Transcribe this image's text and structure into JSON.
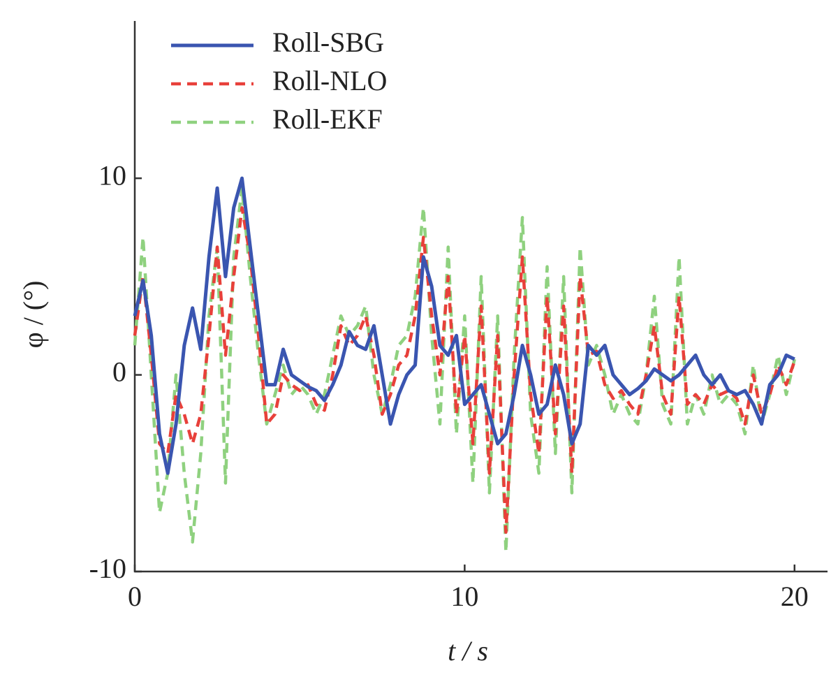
{
  "chart_data": {
    "type": "line",
    "x_label": "t / s",
    "y_label": "φ / (°)",
    "x": [
      0,
      0.25,
      0.5,
      0.75,
      1,
      1.25,
      1.5,
      1.75,
      2,
      2.25,
      2.5,
      2.75,
      3,
      3.25,
      3.5,
      3.75,
      4,
      4.25,
      4.5,
      4.75,
      5,
      5.25,
      5.5,
      5.75,
      6,
      6.25,
      6.5,
      6.75,
      7,
      7.25,
      7.5,
      7.75,
      8,
      8.25,
      8.5,
      8.75,
      9,
      9.25,
      9.5,
      9.75,
      10,
      10.25,
      10.5,
      10.75,
      11,
      11.25,
      11.5,
      11.75,
      12,
      12.25,
      12.5,
      12.75,
      13,
      13.25,
      13.5,
      13.75,
      14,
      14.25,
      14.5,
      14.75,
      15,
      15.25,
      15.5,
      15.75,
      16,
      16.25,
      16.5,
      16.75,
      17,
      17.25,
      17.5,
      17.75,
      18,
      18.25,
      18.5,
      18.75,
      19,
      19.25,
      19.5,
      19.75,
      20
    ],
    "series": [
      {
        "name": "Roll-SBG",
        "color": "#3a55b0",
        "style": "solid",
        "values": [
          3,
          4.8,
          2,
          -3,
          -5,
          -2.5,
          1.5,
          3.4,
          1.3,
          6,
          9.5,
          5,
          8.5,
          10,
          6.5,
          3,
          -0.5,
          -0.5,
          1.3,
          0,
          -0.3,
          -0.6,
          -0.8,
          -1.3,
          -0.5,
          0.5,
          2.2,
          1.5,
          1.3,
          2.5,
          0,
          -2.5,
          -1,
          0,
          0.5,
          6,
          4.5,
          1.5,
          1,
          2,
          -1.5,
          -1,
          -0.5,
          -2,
          -3.5,
          -3,
          -1,
          1.5,
          0,
          -2,
          -1.5,
          0.5,
          -1,
          -3.5,
          -2.5,
          1.5,
          1,
          1.5,
          0,
          -0.5,
          -1,
          -0.7,
          -0.3,
          0.3,
          0,
          -0.3,
          0,
          0.5,
          1,
          0,
          -0.5,
          0,
          -0.8,
          -1,
          -0.8,
          -1.5,
          -2.5,
          -0.5,
          0,
          1,
          0.8
        ]
      },
      {
        "name": "Roll-NLO",
        "color": "#e8403a",
        "style": "dashed",
        "values": [
          2,
          5,
          1,
          -3.5,
          -4,
          -1,
          -2,
          -3.5,
          -2,
          2,
          6.5,
          1,
          5,
          8.5,
          6,
          2,
          -2.5,
          -2,
          0,
          -0.5,
          -0.8,
          -0.5,
          -1.5,
          -1.8,
          0,
          2.5,
          1.5,
          2,
          3,
          1,
          -2,
          -1,
          0.5,
          1,
          3,
          7,
          3,
          0,
          5,
          -2,
          2,
          -3.5,
          3.5,
          -5,
          2,
          -8,
          0,
          6,
          -1,
          -4,
          4,
          -3,
          3.5,
          -5,
          5,
          1,
          1.2,
          -0.5,
          -1.2,
          -0.8,
          -1.5,
          -2,
          0,
          2.5,
          -1,
          -2,
          4,
          -1.5,
          -1,
          -1.5,
          -0.5,
          -1,
          -0.8,
          -1.2,
          -2.5,
          0,
          -2,
          -1,
          0.5,
          -0.5,
          0.7
        ]
      },
      {
        "name": "Roll-EKF",
        "color": "#8fd17f",
        "style": "dashed",
        "values": [
          1.5,
          7,
          0,
          -7,
          -5,
          0,
          -5,
          -8.5,
          -4,
          3,
          6.5,
          -5.5,
          6,
          9.5,
          5,
          1,
          -2.5,
          -1,
          0.5,
          -1,
          -0.5,
          -1,
          -2,
          -1,
          1,
          3,
          2,
          2.5,
          3.5,
          0,
          -2,
          -0.5,
          1.5,
          2,
          4,
          8.5,
          2,
          -2.5,
          6.5,
          -3,
          3,
          -5.5,
          5,
          -6,
          3,
          -9,
          1,
          8,
          -2,
          -5,
          5.5,
          -4,
          5,
          -6,
          6.5,
          0.5,
          1.5,
          0,
          -2,
          -1,
          -2,
          -2.5,
          0,
          4,
          -1.5,
          -2.5,
          6,
          -2.5,
          -1,
          -2,
          0,
          -1.5,
          -1,
          -1.5,
          -3,
          0.5,
          -2.5,
          -1,
          1,
          -1,
          0.8
        ]
      }
    ],
    "xlim": [
      0,
      21
    ],
    "ylim": [
      -10,
      18
    ],
    "xticks": [
      0,
      10,
      20
    ],
    "yticks": [
      -10,
      0,
      10
    ],
    "legend": "upper-left"
  }
}
